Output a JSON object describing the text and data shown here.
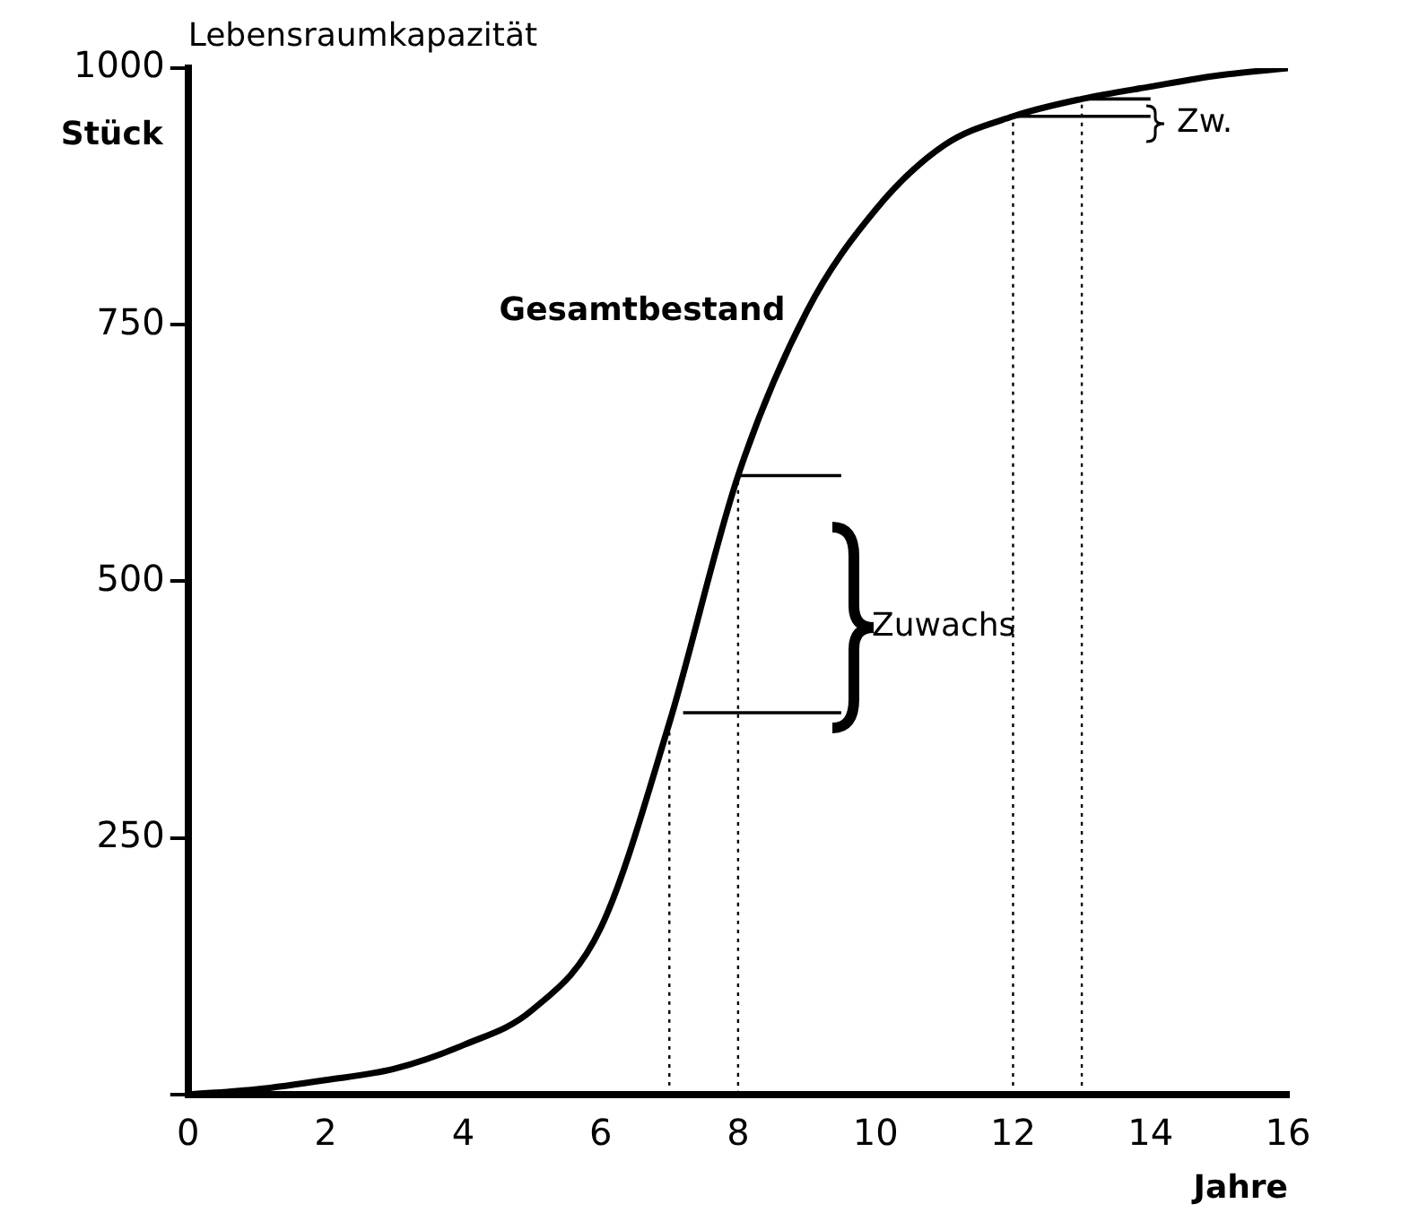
{
  "chart_data": {
    "type": "line",
    "xlabel": "Jahre",
    "ylabel": "Stück",
    "x": [
      0,
      1,
      2,
      3,
      4,
      5,
      6,
      7,
      8,
      9,
      10,
      11,
      12,
      13,
      14,
      15,
      16
    ],
    "series": [
      {
        "name": "Gesamtbestand",
        "color": "#000000",
        "values": [
          0,
          5,
          14,
          25,
          48,
          82,
          162,
          362,
          603,
          763,
          862,
          925,
          953,
          970,
          982,
          993,
          1000
        ]
      },
      {
        "color": "#000000",
        "line_style": "dotted",
        "x": [
          7,
          7
        ],
        "values": [
          0,
          362
        ]
      },
      {
        "color": "#000000",
        "line_style": "dotted",
        "x": [
          8,
          8
        ],
        "values": [
          0,
          603
        ]
      },
      {
        "color": "#000000",
        "line_style": "dotted",
        "x": [
          12,
          12
        ],
        "values": [
          0,
          953
        ]
      },
      {
        "color": "#000000",
        "line_style": "dotted",
        "x": [
          13,
          13
        ],
        "values": [
          0,
          970
        ]
      },
      {
        "color": "#000000",
        "x": [
          8,
          9.5
        ],
        "values": [
          603,
          603
        ]
      },
      {
        "color": "#000000",
        "x": [
          7.2,
          9.5
        ],
        "values": [
          372,
          372
        ]
      },
      {
        "color": "#000000",
        "x": [
          12,
          14
        ],
        "values": [
          953,
          953
        ]
      },
      {
        "color": "#000000",
        "x": [
          13,
          14
        ],
        "values": [
          970,
          970
        ]
      }
    ],
    "xlim": [
      0,
      16
    ],
    "xticks": [
      0,
      2,
      4,
      6,
      8,
      10,
      12,
      14,
      16
    ],
    "ylim": [
      0,
      1000
    ],
    "yticks": [
      {
        "value": 0,
        "label": null
      },
      250,
      500,
      750,
      1000
    ],
    "annotations": [
      "Lebensraumkapazität",
      "Zuwachs",
      "Zw."
    ],
    "grid": false,
    "legend": false,
    "marker": "none",
    "line_style": "solid"
  }
}
